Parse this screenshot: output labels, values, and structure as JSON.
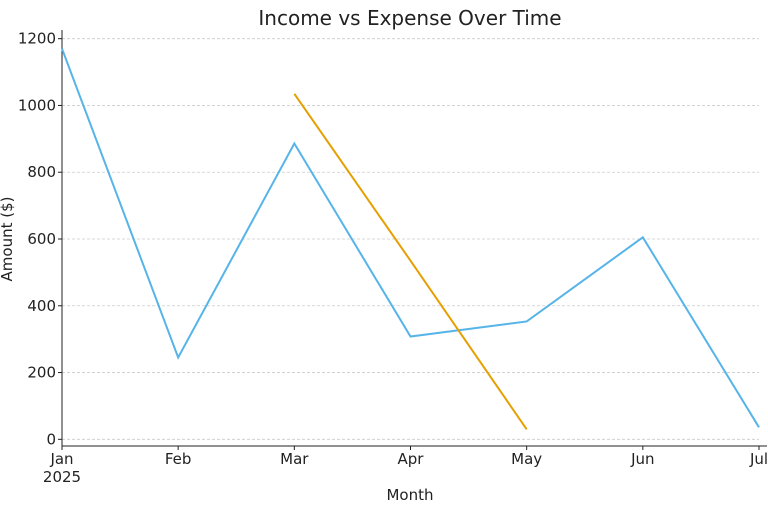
{
  "chart_data": {
    "type": "line",
    "title": "Income vs Expense Over Time",
    "x_label": "Month",
    "y_label": "Amount ($)",
    "categories": [
      "Jan\n2025",
      "Feb",
      "Mar",
      "Apr",
      "May",
      "Jun",
      "Jul"
    ],
    "series": [
      {
        "color": "#56B4E9",
        "values": [
          1170,
          245,
          886,
          308,
          353,
          605,
          36
        ]
      },
      {
        "color": "#E69F00",
        "values": [
          null,
          null,
          1035,
          535,
          30,
          null,
          null
        ]
      }
    ],
    "ylim": [
      -20,
      1220
    ],
    "yticks": [
      0,
      200,
      400,
      600,
      800,
      1000,
      1200
    ],
    "grid": true
  }
}
